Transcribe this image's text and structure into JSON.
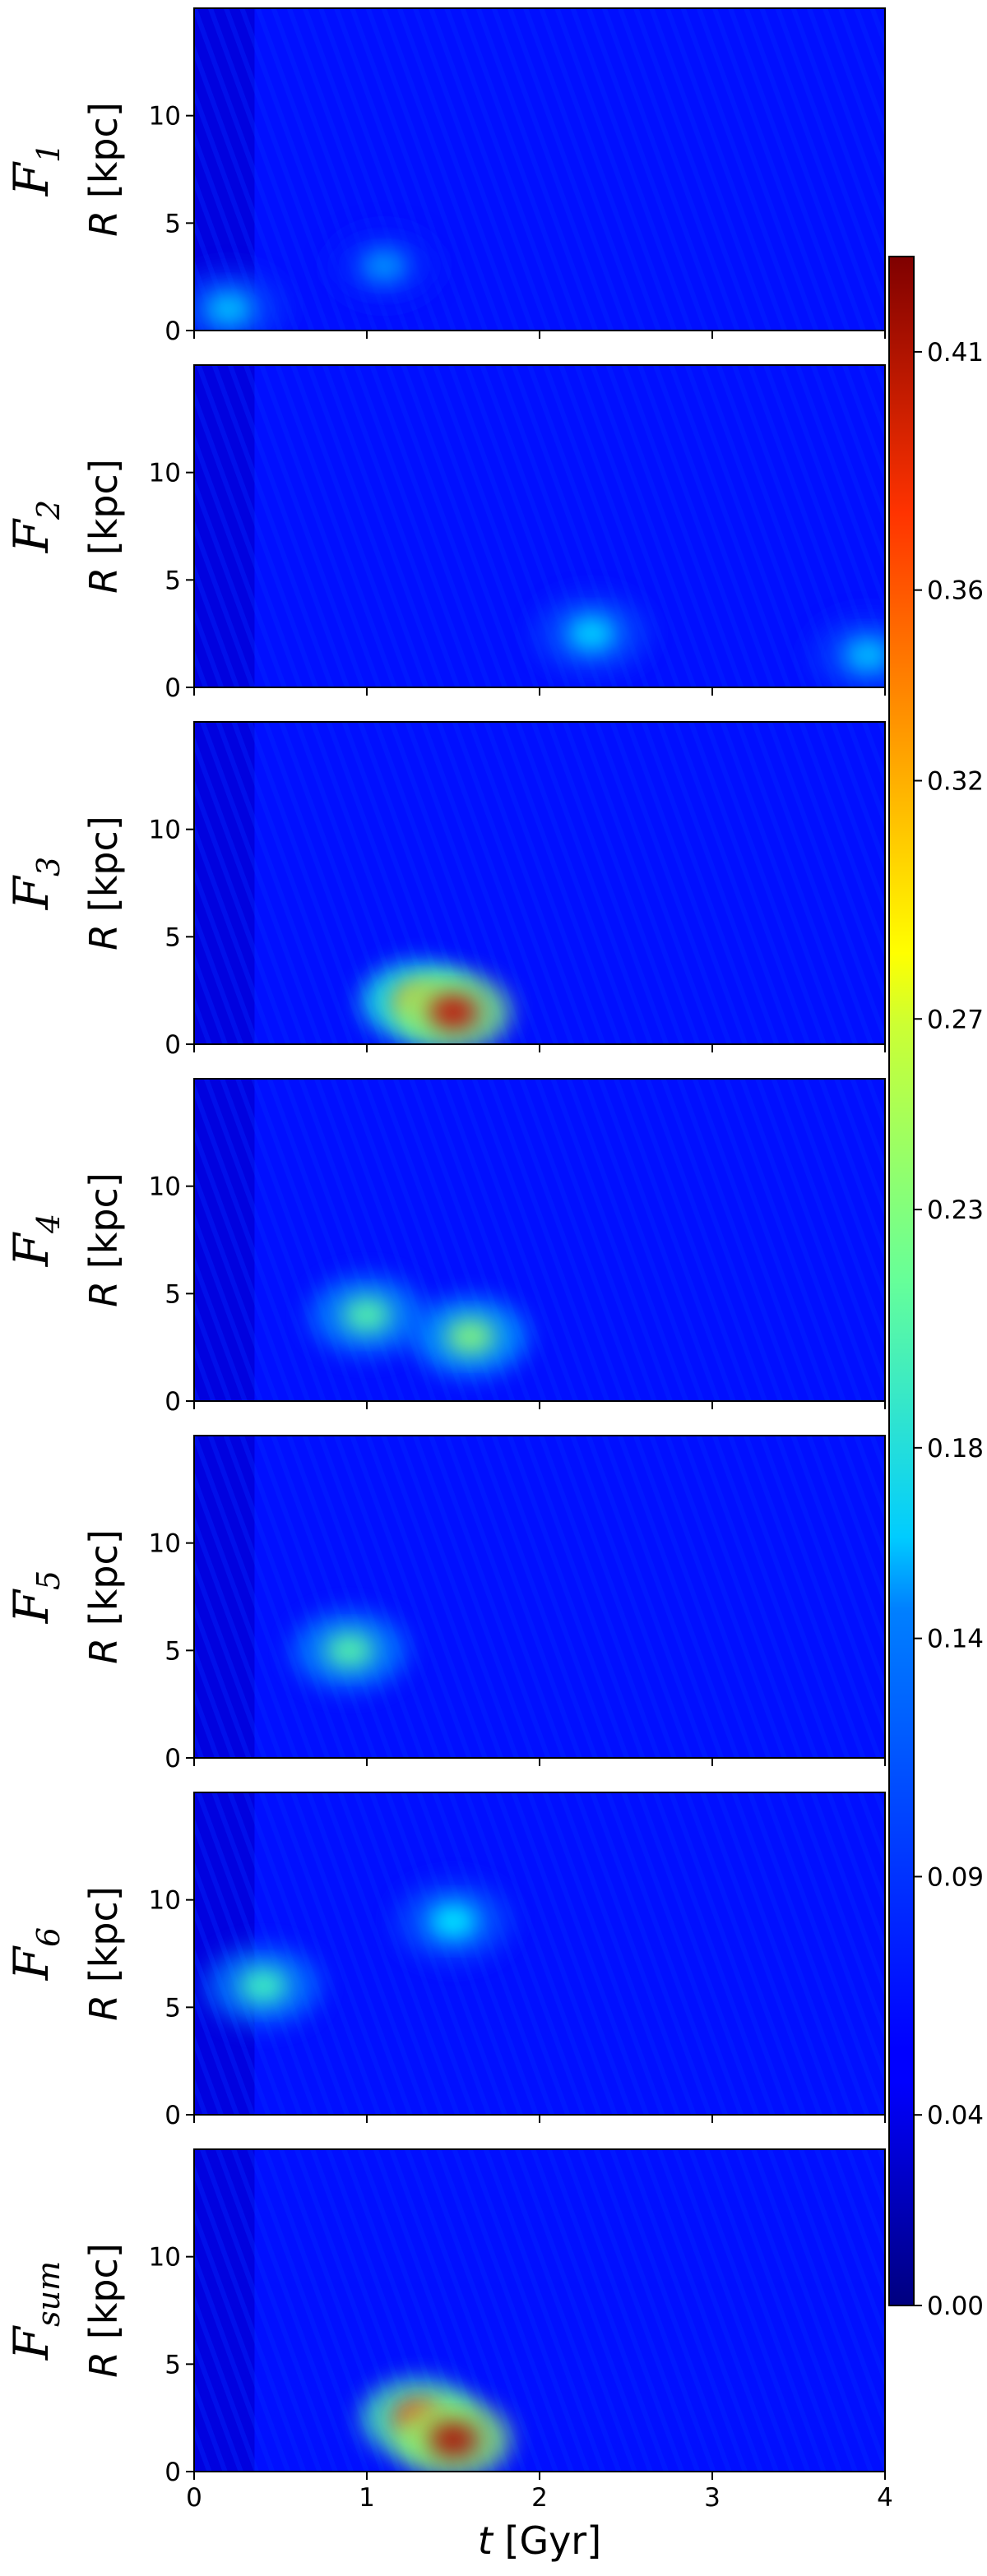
{
  "chart_data": {
    "type": "heatmap",
    "title": "",
    "colormap": "jet",
    "x_axis": {
      "label_italic": "t",
      "label_rest": " [Gyr]",
      "range": [
        0,
        4
      ],
      "ticks": [
        0,
        1,
        2,
        3,
        4
      ],
      "tick_labels": [
        "0",
        "1",
        "2",
        "3",
        "4"
      ],
      "shared": true
    },
    "y_axis": {
      "label_italic": "R",
      "label_rest": " [kpc]",
      "range": [
        0,
        15
      ],
      "ticks": [
        0,
        5,
        10
      ],
      "tick_labels": [
        "0",
        "5",
        "10"
      ]
    },
    "colorbar": {
      "range": [
        0.0,
        0.43
      ],
      "ticks": [
        0.0,
        0.04,
        0.09,
        0.14,
        0.18,
        0.23,
        0.27,
        0.32,
        0.36,
        0.41
      ],
      "tick_labels": [
        "0.00",
        "0.04",
        "0.09",
        "0.14",
        "0.18",
        "0.23",
        "0.27",
        "0.32",
        "0.36",
        "0.41"
      ]
    },
    "panels": [
      {
        "name": "F",
        "subscript": "1",
        "peak_value": 0.15,
        "hotspots": [
          {
            "t": 1.1,
            "R": 3.0,
            "value": 0.12
          },
          {
            "t": 0.2,
            "R": 1.0,
            "value": 0.14
          }
        ]
      },
      {
        "name": "F",
        "subscript": "2",
        "peak_value": 0.16,
        "hotspots": [
          {
            "t": 2.3,
            "R": 2.5,
            "value": 0.15
          },
          {
            "t": 3.9,
            "R": 1.5,
            "value": 0.14
          }
        ]
      },
      {
        "name": "F",
        "subscript": "3",
        "peak_value": 0.4,
        "hotspots": [
          {
            "t": 1.3,
            "R": 2.0,
            "value": 0.32
          },
          {
            "t": 1.5,
            "R": 1.5,
            "value": 0.4
          }
        ]
      },
      {
        "name": "F",
        "subscript": "4",
        "peak_value": 0.22,
        "hotspots": [
          {
            "t": 1.6,
            "R": 3.0,
            "value": 0.22
          },
          {
            "t": 1.0,
            "R": 4.0,
            "value": 0.2
          }
        ]
      },
      {
        "name": "F",
        "subscript": "5",
        "peak_value": 0.2,
        "hotspots": [
          {
            "t": 0.9,
            "R": 5.0,
            "value": 0.2
          }
        ]
      },
      {
        "name": "F",
        "subscript": "6",
        "peak_value": 0.19,
        "hotspots": [
          {
            "t": 0.4,
            "R": 6.0,
            "value": 0.19
          },
          {
            "t": 1.5,
            "R": 9.0,
            "value": 0.16
          }
        ]
      },
      {
        "name": "F",
        "subscript": "sum",
        "peak_value": 0.41,
        "hotspots": [
          {
            "t": 1.3,
            "R": 2.5,
            "value": 0.36
          },
          {
            "t": 1.5,
            "R": 1.5,
            "value": 0.41
          }
        ]
      }
    ]
  }
}
